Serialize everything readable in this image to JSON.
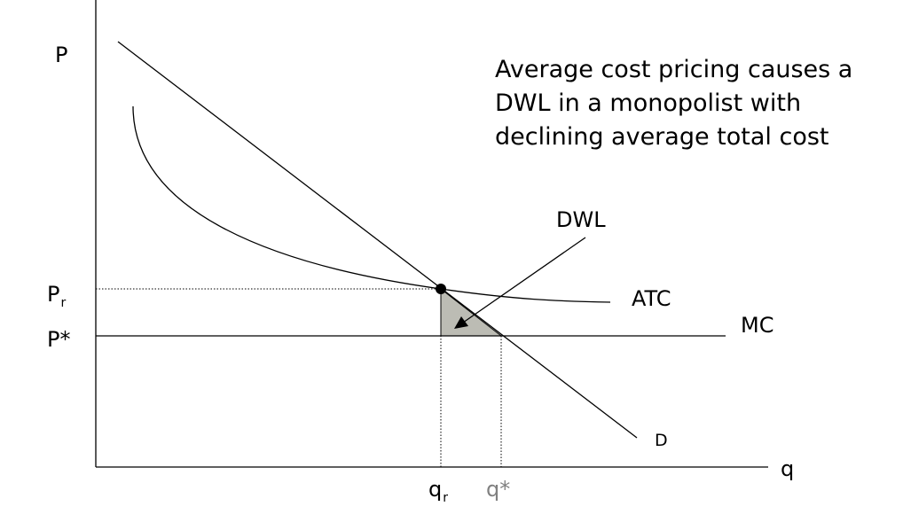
{
  "caption": {
    "line1": "Average cost pricing causes a",
    "line2": "DWL in a monopolist with",
    "line3": "declining average total cost"
  },
  "axes": {
    "y_label": "P",
    "x_label": "q"
  },
  "price_labels": {
    "regulated_main": "P",
    "regulated_sub": "r",
    "competitive": "P*"
  },
  "quantity_labels": {
    "regulated_main": "q",
    "regulated_sub": "r",
    "competitive": "q*"
  },
  "curves": {
    "atc": "ATC",
    "mc": "MC",
    "demand": "D"
  },
  "dwl_label": "DWL",
  "colors": {
    "line": "#000000",
    "dwl_fill": "#bcbcb4",
    "q_star_label": "#808080"
  }
}
